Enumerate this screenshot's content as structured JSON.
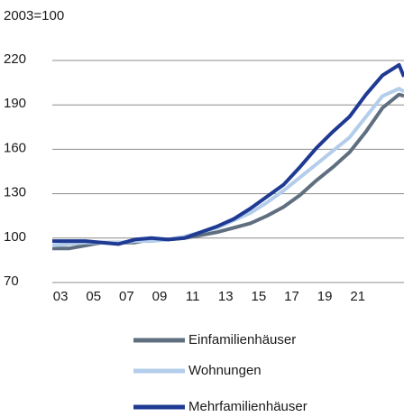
{
  "chart_data": {
    "type": "line",
    "y_axis_label": "2003=100",
    "xlim": [
      2002.5,
      2023.8
    ],
    "xticks": [
      {
        "value": 2003,
        "label": "03"
      },
      {
        "value": 2005,
        "label": "05"
      },
      {
        "value": 2007,
        "label": "07"
      },
      {
        "value": 2009,
        "label": "09"
      },
      {
        "value": 2011,
        "label": "11"
      },
      {
        "value": 2013,
        "label": "13"
      },
      {
        "value": 2015,
        "label": "15"
      },
      {
        "value": 2017,
        "label": "17"
      },
      {
        "value": 2019,
        "label": "19"
      },
      {
        "value": 2021,
        "label": "21"
      }
    ],
    "ylim": [
      70,
      220
    ],
    "yticks": [
      70,
      100,
      130,
      160,
      190,
      220
    ],
    "grid": true,
    "legend": "bottom",
    "x": [
      2002.5,
      2003.5,
      2004.5,
      2005.5,
      2006.5,
      2007.5,
      2008.5,
      2009.5,
      2010.5,
      2011.5,
      2012.5,
      2013.5,
      2014.5,
      2015.5,
      2016.5,
      2017.5,
      2018.5,
      2019.5,
      2020.5,
      2021.5,
      2022.5,
      2023.5,
      2023.8
    ],
    "series": [
      {
        "name": "Einfamilienhäuser",
        "color": "#5f6f80",
        "values": [
          93,
          93,
          95,
          97,
          97,
          97,
          99,
          99,
          100,
          102,
          104,
          107,
          110,
          115,
          121,
          129,
          139,
          148,
          158,
          172,
          188,
          197,
          196
        ]
      },
      {
        "name": "Wohnungen",
        "color": "#b3cdea",
        "values": [
          95,
          96,
          97,
          97,
          97,
          98,
          98,
          99,
          101,
          104,
          107,
          112,
          117,
          124,
          132,
          141,
          150,
          159,
          168,
          182,
          196,
          201,
          199
        ]
      },
      {
        "name": "Mehrfamilienhäuser",
        "color": "#1f3a93",
        "values": [
          98,
          98,
          98,
          97,
          96,
          99,
          100,
          99,
          100,
          104,
          108,
          113,
          120,
          128,
          136,
          148,
          161,
          172,
          182,
          197,
          210,
          217,
          209
        ]
      }
    ]
  }
}
